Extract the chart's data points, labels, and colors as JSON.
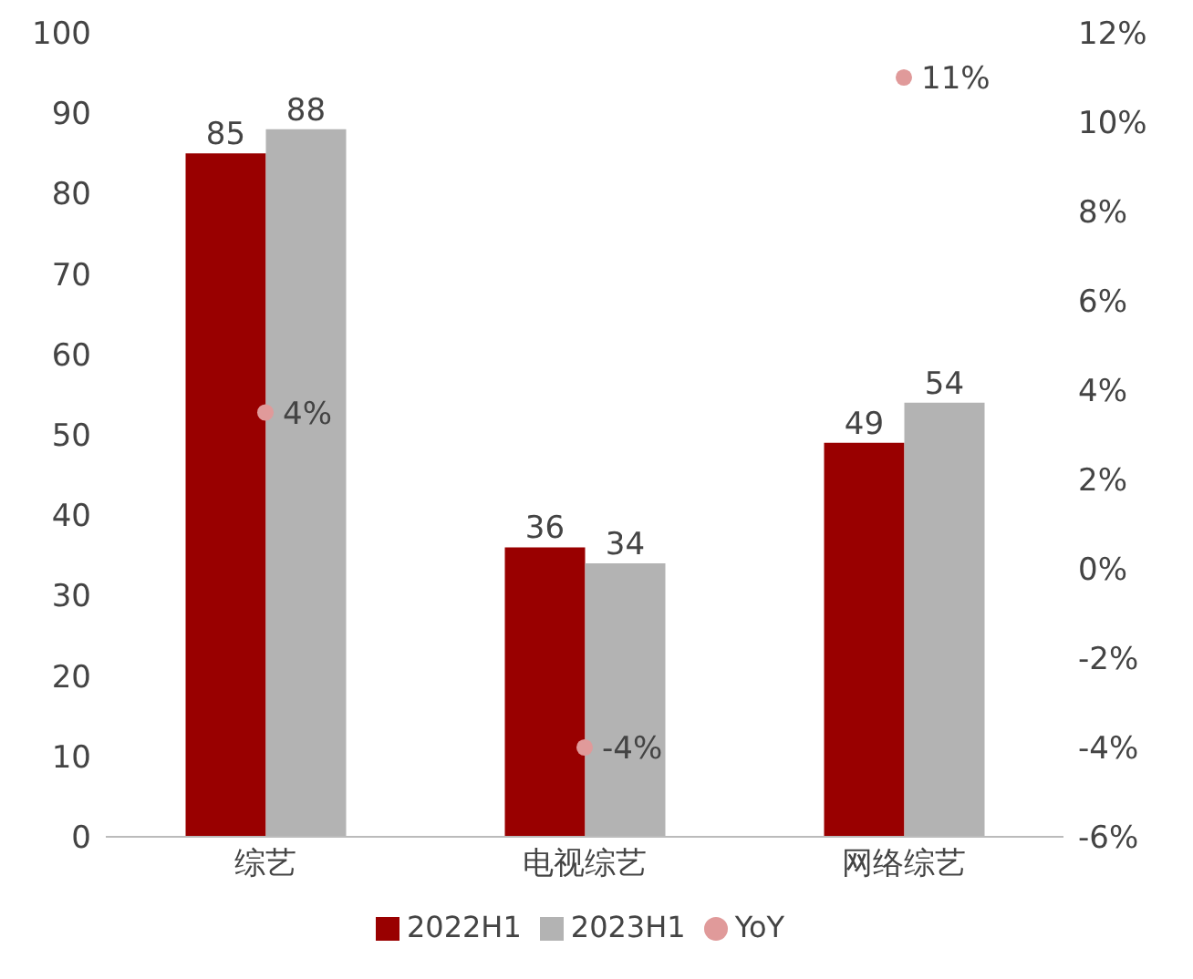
{
  "chart_data": {
    "type": "bar",
    "categories": [
      "综艺",
      "电视综艺",
      "网络综艺"
    ],
    "series": [
      {
        "name": "2022H1",
        "color": "#990000",
        "values": [
          85,
          36,
          49
        ],
        "data_labels": true
      },
      {
        "name": "2023H1",
        "color": "#b3b3b3",
        "values": [
          88,
          34,
          54
        ],
        "data_labels": true
      },
      {
        "name": "YoY",
        "type": "scatter",
        "axis": "y2",
        "color": "#e09a9a",
        "values": [
          3.5,
          -4,
          11
        ],
        "value_labels": [
          "4%",
          "-4%",
          "11%"
        ]
      }
    ],
    "ylim": [
      0,
      100
    ],
    "yticks": [
      0,
      10,
      20,
      30,
      40,
      50,
      60,
      70,
      80,
      90,
      100
    ],
    "y2lim": [
      -6,
      12
    ],
    "y2ticks": [
      {
        "value": -6,
        "label": "-6%"
      },
      {
        "value": -4,
        "label": "-4%"
      },
      {
        "value": -2,
        "label": "-2%"
      },
      {
        "value": 0,
        "label": "0%"
      },
      {
        "value": 2,
        "label": "2%"
      },
      {
        "value": 4,
        "label": "4%"
      },
      {
        "value": 6,
        "label": "6%"
      },
      {
        "value": 8,
        "label": "8%"
      },
      {
        "value": 10,
        "label": "10%"
      },
      {
        "value": 12,
        "label": "12%"
      }
    ],
    "grid": false,
    "legend": "bottom"
  }
}
